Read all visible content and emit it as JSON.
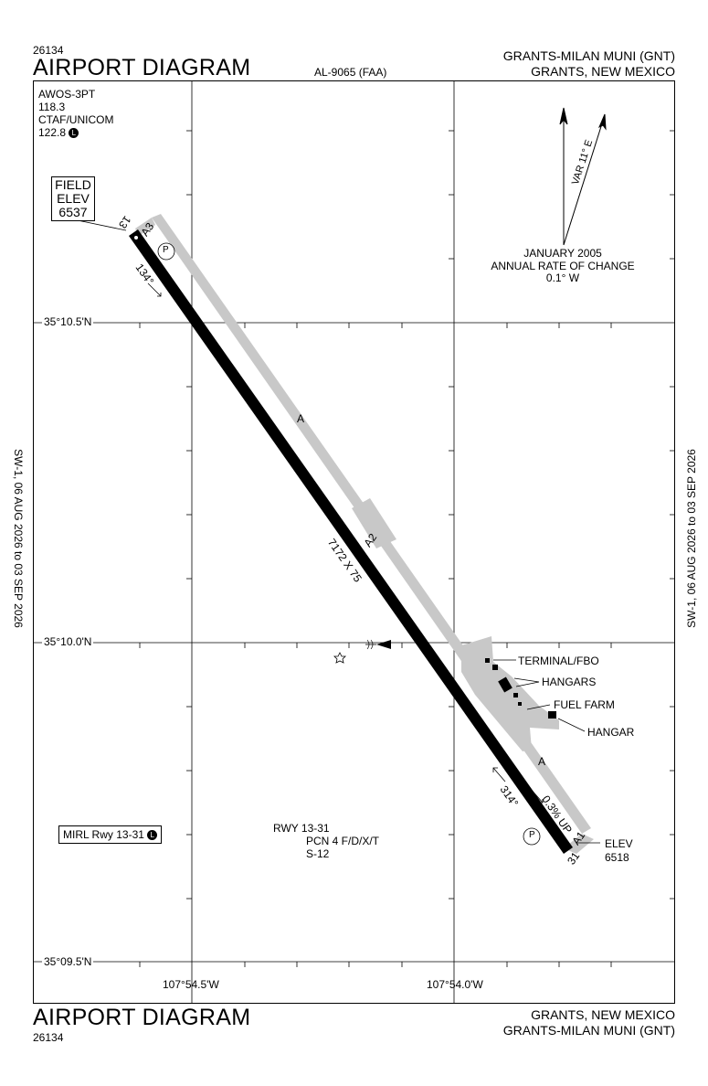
{
  "header": {
    "procedure_number": "26134",
    "title": "AIRPORT DIAGRAM",
    "chart_id": "AL-9065 (FAA)",
    "airport_name": "GRANTS-MILAN MUNI (GNT)",
    "location": "GRANTS, NEW MEXICO"
  },
  "footer": {
    "title": "AIRPORT DIAGRAM",
    "procedure_number": "26134",
    "location": "GRANTS, NEW MEXICO",
    "airport_name": "GRANTS-MILAN MUNI (GNT)"
  },
  "side_text": {
    "left": "SW-1,  06 AUG 2026  to  03 SEP 2026",
    "right": "SW-1,  06 AUG 2026  to  03 SEP 2026"
  },
  "comms": {
    "awos_label": "AWOS-3PT",
    "awos_freq": "118.3",
    "ctaf_label": "CTAF/UNICOM",
    "ctaf_freq": "122.8",
    "lighting_symbol": "L"
  },
  "field_elev": {
    "label1": "FIELD",
    "label2": "ELEV",
    "value": "6537"
  },
  "magnetic": {
    "var_label": "VAR 11° E",
    "date": "JANUARY 2005",
    "rate_label": "ANNUAL RATE OF CHANGE",
    "rate_value": "0.1° W"
  },
  "coordinates": {
    "lat_top": "35°10.5'N",
    "lat_mid": "35°10.0'N",
    "lat_bot": "35°09.5'N",
    "lon_left": "107°54.5'W",
    "lon_right": "107°54.0'W"
  },
  "runway": {
    "end_13": "13",
    "end_31": "31",
    "heading_13": "134°",
    "heading_31": "314°",
    "dimensions": "7172 X 75",
    "slope": "0.3% UP",
    "end_31_elev_label": "ELEV",
    "end_31_elev": "6518",
    "parking_symbol": "P"
  },
  "taxiways": {
    "a": "A",
    "a1": "A1",
    "a2": "A2",
    "a3": "A3"
  },
  "facilities": {
    "terminal": "TERMINAL/FBO",
    "hangars": "HANGARS",
    "fuel_farm": "FUEL FARM",
    "hangar": "HANGAR"
  },
  "runway_info": {
    "rwy": "RWY 13-31",
    "pcn": "PCN 4 F/D/X/T",
    "strength": "S-12"
  },
  "lighting": {
    "mirl": "MIRL Rwy 13-31",
    "symbol": "L"
  },
  "colors": {
    "runway": "#000000",
    "taxiway": "#c8c8c8",
    "grid": "#000000"
  }
}
